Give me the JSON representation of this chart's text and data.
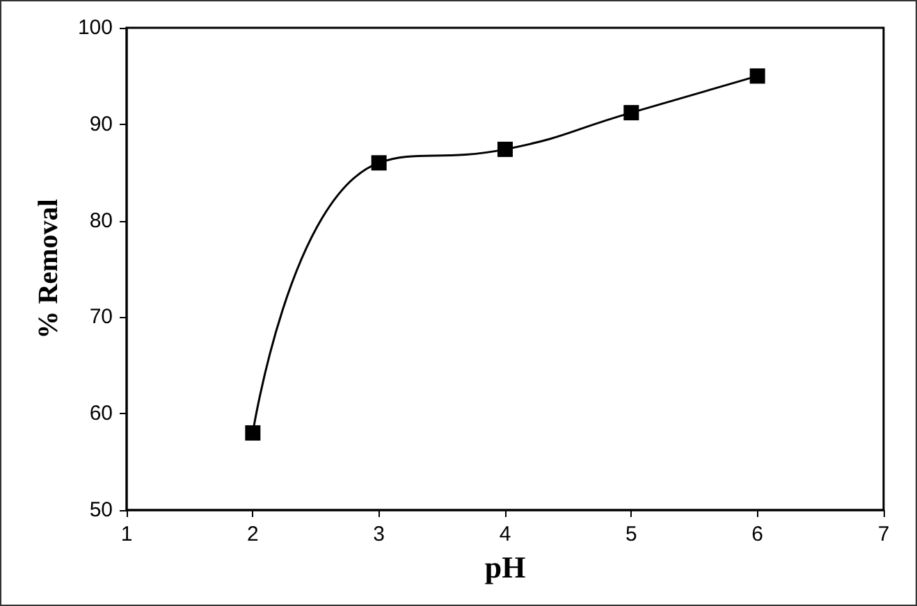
{
  "chart_data": {
    "type": "line",
    "xlabel": "pH",
    "ylabel": "% Removal",
    "x": [
      2,
      3,
      4,
      5,
      6
    ],
    "series": [
      {
        "color": "#000000",
        "values": [
          58,
          86,
          87.4,
          91.2,
          95
        ]
      }
    ],
    "xlim": [
      1,
      7
    ],
    "xticks": [
      1,
      2,
      3,
      4,
      5,
      6,
      7
    ],
    "ylim": [
      50,
      100
    ],
    "yticks": [
      50,
      60,
      70,
      80,
      90,
      100
    ],
    "grid": false,
    "marker": "square",
    "line_style": "solid"
  }
}
